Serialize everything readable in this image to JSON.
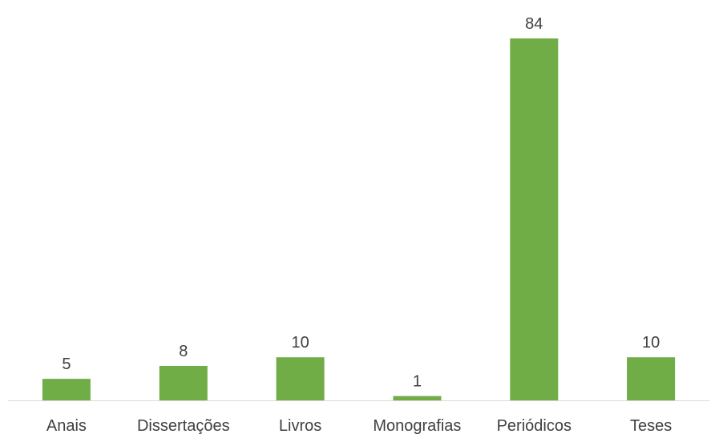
{
  "chart_data": {
    "type": "bar",
    "categories": [
      "Anais",
      "Dissertações",
      "Livros",
      "Monografias",
      "Periódicos",
      "Teses"
    ],
    "values": [
      5,
      8,
      10,
      1,
      84,
      10
    ],
    "title": "",
    "xlabel": "",
    "ylabel": "",
    "ylim": [
      0,
      84
    ],
    "grid": false,
    "legend": "none",
    "data_labels": true
  },
  "colors": {
    "bar": "#70AD47",
    "axis": "#D9D9D9",
    "text": "#404040"
  }
}
